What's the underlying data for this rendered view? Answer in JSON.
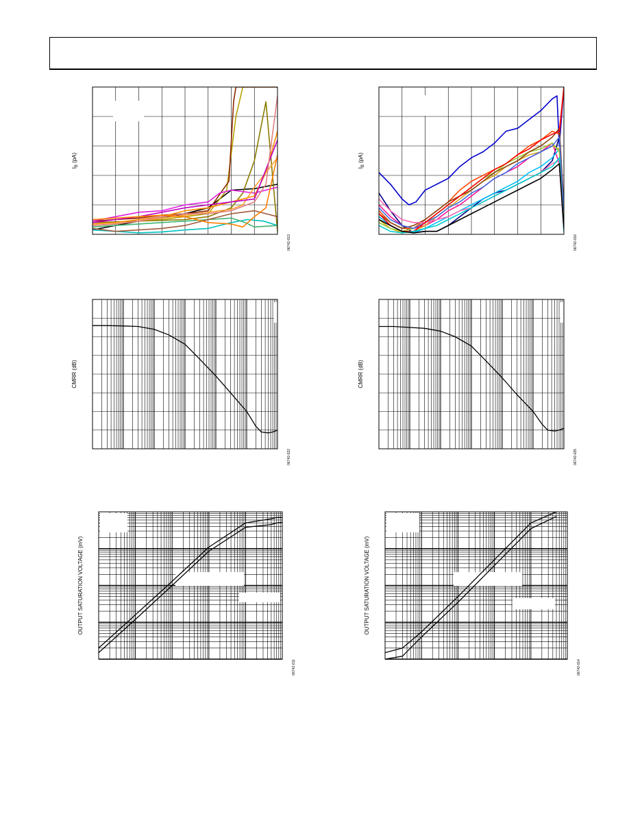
{
  "header": {
    "text": ""
  },
  "chart_data": [
    {
      "id": "ib-left",
      "type": "line",
      "title": "",
      "ylabel": "IB (pA)",
      "ylabel_main": "I",
      "ylabel_sub": "B",
      "ylabel_unit": " (pA)",
      "figure_code": "06742-013",
      "xlim": [
        0,
        8
      ],
      "ylim": [
        0,
        5
      ],
      "xscale": "linear",
      "yscale": "linear",
      "grid": true,
      "series": [
        {
          "color": "#000000",
          "x": [
            0,
            1,
            2,
            3,
            4,
            5,
            6,
            7,
            8
          ],
          "y": [
            0.15,
            0.3,
            0.45,
            0.55,
            0.7,
            0.9,
            1.5,
            1.55,
            1.7
          ]
        },
        {
          "color": "#b5a000",
          "x": [
            0,
            1,
            2,
            3,
            4,
            5,
            5.8,
            6.2,
            6.5,
            8
          ],
          "y": [
            0.3,
            0.35,
            0.45,
            0.5,
            0.6,
            0.7,
            1.5,
            4,
            5,
            5
          ]
        },
        {
          "color": "#8b2500",
          "x": [
            0,
            1,
            2,
            3,
            4,
            5,
            5.9,
            6.1,
            6.2,
            8
          ],
          "y": [
            0.45,
            0.5,
            0.55,
            0.65,
            0.7,
            0.8,
            1.8,
            4.5,
            5,
            5
          ]
        },
        {
          "color": "#8b7a00",
          "x": [
            0,
            2,
            4,
            5,
            6,
            6.5,
            7,
            7.5,
            8
          ],
          "y": [
            0.4,
            0.45,
            0.5,
            0.6,
            0.9,
            1.4,
            2.5,
            4.5,
            0.1
          ]
        },
        {
          "color": "#e020e0",
          "x": [
            0,
            1,
            2,
            3,
            4,
            5,
            5.5,
            6,
            7,
            8
          ],
          "y": [
            0.45,
            0.6,
            0.75,
            0.8,
            1.0,
            1.1,
            1.4,
            1.5,
            1.4,
            1.6
          ]
        },
        {
          "color": "#ff8c00",
          "x": [
            0,
            1,
            2,
            3,
            4,
            5,
            6,
            7,
            7.5,
            8
          ],
          "y": [
            0.35,
            0.4,
            0.5,
            0.6,
            0.8,
            0.9,
            1.1,
            1.3,
            2.1,
            3.5
          ]
        },
        {
          "color": "#ffa030",
          "x": [
            0,
            1,
            2,
            3,
            4,
            5,
            6,
            6.5,
            7,
            8
          ],
          "y": [
            0.3,
            0.35,
            0.45,
            0.55,
            0.65,
            0.75,
            0.85,
            1.0,
            1.6,
            2.6
          ]
        },
        {
          "color": "#c000c0",
          "x": [
            0,
            1,
            2,
            3,
            4,
            5,
            6,
            7,
            8
          ],
          "y": [
            0.4,
            0.5,
            0.6,
            0.75,
            0.9,
            1.0,
            1.1,
            1.2,
            3.2
          ]
        },
        {
          "color": "#e08080",
          "x": [
            0,
            1,
            2,
            3,
            4,
            5,
            6,
            7,
            7.5,
            8
          ],
          "y": [
            0.3,
            0.35,
            0.45,
            0.6,
            0.7,
            0.7,
            0.8,
            1.1,
            1.7,
            4.7
          ]
        },
        {
          "color": "#00bfbf",
          "x": [
            0,
            1,
            2,
            3,
            4,
            5,
            5.5,
            6,
            6.7,
            7.4,
            8
          ],
          "y": [
            0.15,
            0.1,
            0.05,
            0.08,
            0.15,
            0.2,
            0.3,
            0.4,
            0.5,
            0.45,
            0.3
          ]
        },
        {
          "color": "#3cb371",
          "x": [
            0,
            1,
            2,
            3,
            4,
            5,
            6,
            6.6,
            7,
            8
          ],
          "y": [
            0.25,
            0.3,
            0.35,
            0.4,
            0.45,
            0.5,
            0.55,
            0.4,
            0.25,
            0.3
          ]
        },
        {
          "color": "#a05a3a",
          "x": [
            0,
            1,
            2,
            3,
            4,
            5,
            6,
            7,
            8
          ],
          "y": [
            0.2,
            0.1,
            0.15,
            0.2,
            0.3,
            0.5,
            0.7,
            0.8,
            0.6
          ]
        },
        {
          "color": "#ff7f00",
          "x": [
            0,
            1,
            2,
            3,
            4,
            5,
            6,
            6.5,
            7,
            7.5,
            8
          ],
          "y": [
            0.5,
            0.55,
            0.6,
            0.65,
            0.6,
            0.4,
            0.35,
            0.25,
            0.6,
            0.9,
            2.7
          ]
        }
      ]
    },
    {
      "id": "ib-right",
      "type": "line",
      "title": "",
      "ylabel": "IB (pA)",
      "ylabel_main": "I",
      "ylabel_sub": "B",
      "ylabel_unit": " (pA)",
      "figure_code": "06742-016",
      "xlim": [
        0,
        8
      ],
      "ylim": [
        0,
        5
      ],
      "xscale": "linear",
      "yscale": "linear",
      "grid": true,
      "series": [
        {
          "color": "#0000cd",
          "x": [
            0,
            0.5,
            1,
            1.3,
            1.6,
            2,
            2.5,
            3,
            3.5,
            4,
            4.5,
            5,
            5.5,
            6,
            6.5,
            7,
            7.5,
            7.7,
            7.8,
            8
          ],
          "y": [
            2.1,
            1.7,
            1.2,
            1.0,
            1.1,
            1.5,
            1.7,
            1.9,
            2.3,
            2.6,
            2.8,
            3.1,
            3.5,
            3.6,
            3.9,
            4.2,
            4.6,
            4.7,
            3.0,
            5.0
          ]
        },
        {
          "color": "#000080",
          "x": [
            0,
            0.5,
            1,
            1.5,
            2,
            2.5,
            3,
            3.5,
            4,
            4.5,
            5,
            5.5,
            6,
            6.5,
            7,
            7.5,
            7.8,
            8
          ],
          "y": [
            1.4,
            0.8,
            0.3,
            0.05,
            0.1,
            0.1,
            0.3,
            0.6,
            0.9,
            1.2,
            1.4,
            1.5,
            1.7,
            1.9,
            2.1,
            2.5,
            3.3,
            0.5
          ]
        },
        {
          "color": "#ff4500",
          "x": [
            0,
            0.5,
            1,
            1.5,
            2,
            2.5,
            3,
            3.5,
            4,
            4.5,
            5,
            5.5,
            6,
            6.5,
            7,
            7.5,
            7.8,
            8
          ],
          "y": [
            0.8,
            0.4,
            0.2,
            0.2,
            0.5,
            0.8,
            1.1,
            1.5,
            1.8,
            2.0,
            2.2,
            2.4,
            2.7,
            3.0,
            3.2,
            3.5,
            3.4,
            5.0
          ]
        },
        {
          "color": "#ff1493",
          "x": [
            0,
            0.5,
            1,
            1.5,
            2,
            2.5,
            3,
            3.5,
            4,
            4.5,
            5,
            5.5,
            6,
            6.5,
            7,
            7.5,
            7.8,
            8
          ],
          "y": [
            1.0,
            0.6,
            0.3,
            0.2,
            0.3,
            0.5,
            0.8,
            1.0,
            1.3,
            1.6,
            1.9,
            2.1,
            2.3,
            2.6,
            2.8,
            3.1,
            2.4,
            0.1
          ]
        },
        {
          "color": "#00bfff",
          "x": [
            0,
            0.5,
            1,
            1.5,
            2,
            2.5,
            3,
            3.5,
            4,
            4.5,
            5,
            5.5,
            6,
            6.5,
            7,
            7.5,
            7.8,
            8
          ],
          "y": [
            0.6,
            0.3,
            0.1,
            0.05,
            0.2,
            0.4,
            0.6,
            0.8,
            1.0,
            1.2,
            1.4,
            1.6,
            1.8,
            2.1,
            2.3,
            2.6,
            2.9,
            0.1
          ]
        },
        {
          "color": "#daa520",
          "x": [
            0,
            0.5,
            1,
            1.5,
            2,
            2.5,
            3,
            3.5,
            4,
            4.5,
            5,
            5.5,
            6,
            6.5,
            7,
            7.5,
            7.8,
            8
          ],
          "y": [
            0.5,
            0.2,
            0.05,
            0.1,
            0.3,
            0.6,
            0.9,
            1.2,
            1.5,
            1.8,
            2.0,
            2.3,
            2.5,
            2.7,
            2.8,
            3.0,
            2.9,
            0.2
          ]
        },
        {
          "color": "#9acd32",
          "x": [
            0,
            0.5,
            1,
            1.5,
            2,
            2.5,
            3,
            3.5,
            4,
            4.5,
            5,
            5.5,
            6,
            6.5,
            7,
            7.5,
            7.8,
            8
          ],
          "y": [
            0.4,
            0.2,
            0.1,
            0.2,
            0.4,
            0.7,
            1.0,
            1.3,
            1.6,
            1.9,
            2.1,
            2.4,
            2.6,
            2.8,
            2.9,
            3.1,
            2.8,
            0.3
          ]
        },
        {
          "color": "#8b4513",
          "x": [
            0,
            0.5,
            1,
            1.5,
            2,
            2.5,
            3,
            3.5,
            4,
            4.5,
            5,
            5.5,
            6,
            6.5,
            7,
            7.5,
            7.8,
            8
          ],
          "y": [
            0.7,
            0.4,
            0.2,
            0.3,
            0.5,
            0.8,
            1.1,
            1.3,
            1.5,
            1.8,
            2.1,
            2.3,
            2.5,
            2.8,
            3.0,
            3.3,
            3.6,
            1.0
          ]
        },
        {
          "color": "#4169e1",
          "x": [
            0,
            0.5,
            1,
            1.5,
            2,
            2.5,
            3,
            3.5,
            4,
            4.5,
            5,
            5.5,
            6,
            6.5,
            7,
            7.5,
            7.8,
            8
          ],
          "y": [
            0.9,
            0.5,
            0.3,
            0.2,
            0.4,
            0.6,
            0.9,
            1.1,
            1.4,
            1.6,
            1.9,
            2.1,
            2.4,
            2.6,
            2.8,
            3.0,
            3.3,
            0.8
          ]
        },
        {
          "color": "#ff69b4",
          "x": [
            0,
            0.5,
            1,
            1.5,
            2,
            2.5,
            3,
            3.5,
            4,
            4.5,
            5,
            5.5,
            6,
            6.5,
            7,
            7.5,
            7.8,
            8
          ],
          "y": [
            1.2,
            0.8,
            0.5,
            0.4,
            0.4,
            0.5,
            0.6,
            0.8,
            0.9,
            1.1,
            1.3,
            1.5,
            1.7,
            1.9,
            2.1,
            2.4,
            2.5,
            0.1
          ]
        },
        {
          "color": "#ff0000",
          "x": [
            0,
            0.5,
            1,
            1.5,
            2,
            2.5,
            3,
            3.5,
            4,
            4.5,
            5,
            5.5,
            6,
            6.5,
            7,
            7.5,
            7.8,
            8
          ],
          "y": [
            0.7,
            0.3,
            0.1,
            0.1,
            0.4,
            0.7,
            1.0,
            1.3,
            1.6,
            1.9,
            2.2,
            2.4,
            2.7,
            2.9,
            3.2,
            3.4,
            3.5,
            5.0
          ]
        },
        {
          "color": "#00ced1",
          "x": [
            0,
            0.5,
            1,
            1.5,
            2,
            2.5,
            3,
            3.5,
            4,
            4.5,
            5,
            5.5,
            6,
            6.5,
            7,
            7.5,
            7.8,
            8
          ],
          "y": [
            0.3,
            0.1,
            0.05,
            0.1,
            0.2,
            0.3,
            0.5,
            0.7,
            0.9,
            1.1,
            1.3,
            1.5,
            1.7,
            1.9,
            2.1,
            2.3,
            2.6,
            0.1
          ]
        },
        {
          "color": "#000000",
          "x": [
            0,
            0.5,
            1,
            1.5,
            2,
            2.5,
            3,
            3.5,
            4,
            4.5,
            5,
            5.5,
            6,
            6.5,
            7,
            7.5,
            7.8,
            8
          ],
          "y": [
            0.5,
            0.3,
            0.1,
            0.05,
            0.1,
            0.1,
            0.3,
            0.5,
            0.7,
            0.9,
            1.1,
            1.3,
            1.5,
            1.7,
            1.9,
            2.2,
            2.4,
            0.2
          ]
        }
      ]
    },
    {
      "id": "cmrr-left",
      "type": "line",
      "title": "",
      "ylabel": "CMRR (dB)",
      "figure_code": "06742-022",
      "xlim": [
        1,
        1000000
      ],
      "ylim": [
        0,
        8
      ],
      "xscale": "log",
      "yscale": "linear",
      "grid": true,
      "series": [
        {
          "color": "#000000",
          "x": [
            1,
            3,
            10,
            30,
            100,
            300,
            1000,
            3000,
            10000,
            30000,
            100000,
            200000,
            300000,
            500000,
            700000,
            1000000
          ],
          "y": [
            6.6,
            6.6,
            6.58,
            6.55,
            6.4,
            6.1,
            5.6,
            4.8,
            3.9,
            3.0,
            2.0,
            1.2,
            0.9,
            0.85,
            0.9,
            1.0
          ]
        }
      ]
    },
    {
      "id": "cmrr-right",
      "type": "line",
      "title": "",
      "ylabel": "CMRR (dB)",
      "figure_code": "06742-025",
      "xlim": [
        1,
        1000000
      ],
      "ylim": [
        0,
        8
      ],
      "xscale": "log",
      "yscale": "linear",
      "grid": true,
      "series": [
        {
          "color": "#000000",
          "x": [
            1,
            3,
            10,
            30,
            100,
            300,
            1000,
            3000,
            10000,
            30000,
            100000,
            200000,
            300000,
            500000,
            700000,
            1000000
          ],
          "y": [
            6.55,
            6.55,
            6.5,
            6.45,
            6.3,
            6.0,
            5.5,
            4.7,
            3.8,
            2.9,
            2.0,
            1.3,
            1.0,
            0.95,
            1.0,
            1.1
          ]
        }
      ]
    },
    {
      "id": "osv-left",
      "type": "line",
      "title": "",
      "ylabel": "OUTPUT SATURATION VOLTAGE (mV)",
      "figure_code": "06742-011",
      "xlim": [
        0.001,
        100
      ],
      "ylim": [
        0.1,
        1000
      ],
      "xscale": "log",
      "yscale": "log",
      "grid": true,
      "series": [
        {
          "color": "#000000",
          "x": [
            0.001,
            0.01,
            0.1,
            1,
            10,
            50,
            70,
            100
          ],
          "y": [
            0.2,
            1.6,
            13,
            110,
            500,
            650,
            700,
            700
          ]
        },
        {
          "color": "#000000",
          "x": [
            0.001,
            0.01,
            0.1,
            1,
            10,
            50,
            70,
            100
          ],
          "y": [
            0.15,
            1.2,
            10,
            85,
            380,
            450,
            500,
            520
          ]
        }
      ]
    },
    {
      "id": "osv-right",
      "type": "line",
      "title": "",
      "ylabel": "OUTPUT SATURATION VOLTAGE (mV)",
      "figure_code": "06742-014",
      "xlim": [
        0.001,
        100
      ],
      "ylim": [
        0.1,
        1000
      ],
      "xscale": "log",
      "yscale": "log",
      "grid": true,
      "series": [
        {
          "color": "#000000",
          "x": [
            0.001,
            0.003,
            0.01,
            0.1,
            1,
            10,
            50
          ],
          "y": [
            0.15,
            0.2,
            0.55,
            5,
            50,
            500,
            1000
          ]
        },
        {
          "color": "#000000",
          "x": [
            0.001,
            0.003,
            0.01,
            0.1,
            1,
            10,
            50
          ],
          "y": [
            0.1,
            0.12,
            0.4,
            3.5,
            35,
            350,
            750
          ]
        }
      ]
    }
  ]
}
